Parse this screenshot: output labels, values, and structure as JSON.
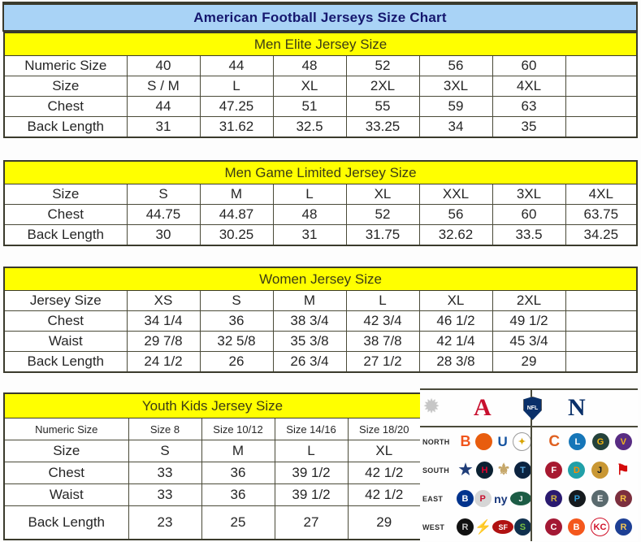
{
  "page": {
    "title": "American Football Jerseys Size Chart"
  },
  "colors": {
    "title_bg": "#a9d3f6",
    "title_fg": "#15176e",
    "section_bg": "#ffff00",
    "afc_red": "#c8102e",
    "nfc_blue": "#0a3069",
    "border": "#3a3a2c"
  },
  "chart_data": [
    {
      "type": "table",
      "title": "Men Elite Jersey Size",
      "rows": [
        {
          "label": "Numeric Size",
          "cells": [
            "40",
            "44",
            "48",
            "52",
            "56",
            "60",
            ""
          ]
        },
        {
          "label": "Size",
          "cells": [
            "S / M",
            "L",
            "XL",
            "2XL",
            "3XL",
            "4XL",
            ""
          ]
        },
        {
          "label": "Chest",
          "cells": [
            "44",
            "47.25",
            "51",
            "55",
            "59",
            "63",
            ""
          ]
        },
        {
          "label": "Back Length",
          "cells": [
            "31",
            "31.62",
            "32.5",
            "33.25",
            "34",
            "35",
            ""
          ]
        }
      ]
    },
    {
      "type": "table",
      "title": "Men Game Limited Jersey Size",
      "rows": [
        {
          "label": "Size",
          "cells": [
            "S",
            "M",
            "L",
            "XL",
            "XXL",
            "3XL",
            "4XL"
          ]
        },
        {
          "label": "Chest",
          "cells": [
            "44.75",
            "44.87",
            "48",
            "52",
            "56",
            "60",
            "63.75"
          ]
        },
        {
          "label": "Back Length",
          "cells": [
            "30",
            "30.25",
            "31",
            "31.75",
            "32.62",
            "33.5",
            "34.25"
          ]
        }
      ]
    },
    {
      "type": "table",
      "title": "Women Jersey Size",
      "rows": [
        {
          "label": "Jersey Size",
          "cells": [
            "XS",
            "S",
            "M",
            "L",
            "XL",
            "2XL",
            ""
          ]
        },
        {
          "label": "Chest",
          "cells": [
            "34 1/4",
            "36",
            "38 3/4",
            "42 3/4",
            "46 1/2",
            "49 1/2",
            ""
          ]
        },
        {
          "label": "Waist",
          "cells": [
            "29 7/8",
            "32 5/8",
            "35 3/8",
            "38 7/8",
            "42 1/4",
            "45 3/4",
            ""
          ]
        },
        {
          "label": "Back Length",
          "cells": [
            "24 1/2",
            "26",
            "26 3/4",
            "27 1/2",
            "28 3/8",
            "29",
            ""
          ]
        }
      ]
    },
    {
      "type": "table",
      "title": "Youth Kids Jersey Size",
      "rows": [
        {
          "label": "Numeric Size",
          "small": true,
          "cells": [
            "Size 8",
            "Size 10/12",
            "Size 14/16",
            "Size 18/20"
          ]
        },
        {
          "label": "Size",
          "cells": [
            "S",
            "M",
            "L",
            "XL"
          ]
        },
        {
          "label": "Chest",
          "cells": [
            "33",
            "36",
            "39 1/2",
            "42 1/2"
          ]
        },
        {
          "label": "Waist",
          "cells": [
            "33",
            "36",
            "39 1/2",
            "42 1/2"
          ]
        },
        {
          "label": "Back Length",
          "cells": [
            "23",
            "25",
            "27",
            "29"
          ]
        }
      ]
    }
  ],
  "conference_panel": {
    "header": {
      "starburst_glyph": "✹",
      "afc_letter": "A",
      "nfl_label": "NFL",
      "nfc_letter": "N"
    },
    "rows": [
      {
        "label": "NORTH",
        "afc": [
          {
            "name": "bengals",
            "type": "glyph",
            "glyph": "B",
            "fg": "#f0551c",
            "fs": 18
          },
          {
            "name": "browns",
            "type": "circle",
            "glyph": "",
            "fg": "#ffffff",
            "bg": "#e85d0e"
          },
          {
            "name": "colts",
            "type": "glyph",
            "glyph": "U",
            "fg": "#1553a0",
            "fs": 17
          },
          {
            "name": "steelers",
            "type": "circle",
            "glyph": "✦",
            "fg": "#d9a400",
            "bg": "#ffffff",
            "border": "#9a9a9a"
          }
        ],
        "nfc": [
          {
            "name": "bears",
            "type": "glyph",
            "glyph": "C",
            "fg": "#df6020",
            "fs": 19
          },
          {
            "name": "lions",
            "type": "circle",
            "glyph": "L",
            "fg": "#ffffff",
            "bg": "#1676b8"
          },
          {
            "name": "packers",
            "type": "circle",
            "glyph": "G",
            "fg": "#f2b40d",
            "bg": "#24423c"
          },
          {
            "name": "vikings",
            "type": "circle",
            "glyph": "V",
            "fg": "#efb21f",
            "bg": "#582c83"
          }
        ]
      },
      {
        "label": "SOUTH",
        "afc": [
          {
            "name": "cowboys",
            "type": "glyph",
            "glyph": "★",
            "fg": "#1e3c78",
            "fs": 19
          },
          {
            "name": "texans",
            "type": "circle",
            "glyph": "H",
            "fg": "#e4002b",
            "bg": "#0b2132"
          },
          {
            "name": "saints",
            "type": "glyph",
            "glyph": "⚜",
            "fg": "#c5a668",
            "fs": 19
          },
          {
            "name": "titans",
            "type": "circle",
            "glyph": "T",
            "fg": "#5ba7dc",
            "bg": "#0c2340"
          }
        ],
        "nfc": [
          {
            "name": "falcons",
            "type": "circle",
            "glyph": "F",
            "fg": "#ffffff",
            "bg": "#a71930"
          },
          {
            "name": "dolphins",
            "type": "circle",
            "glyph": "D",
            "fg": "#ff8a00",
            "bg": "#21a0a8"
          },
          {
            "name": "jaguars",
            "type": "circle",
            "glyph": "J",
            "fg": "#101820",
            "bg": "#c99733"
          },
          {
            "name": "buccaneers",
            "type": "glyph",
            "glyph": "⚑",
            "fg": "#d40a0a",
            "fs": 18
          }
        ]
      },
      {
        "label": "EAST",
        "afc": [
          {
            "name": "bills",
            "type": "circle",
            "glyph": "B",
            "fg": "#ffffff",
            "bg": "#00338d"
          },
          {
            "name": "patriots",
            "type": "circle",
            "glyph": "P",
            "fg": "#c8102e",
            "bg": "#d6d6d6"
          },
          {
            "name": "giants",
            "type": "glyph",
            "glyph": "ny",
            "fg": "#15357a",
            "fs": 14
          },
          {
            "name": "jets",
            "type": "ellipse",
            "glyph": "J",
            "fg": "#ffffff",
            "bg": "#1c5c45"
          }
        ],
        "nfc": [
          {
            "name": "ravens",
            "type": "circle",
            "glyph": "R",
            "fg": "#d0b240",
            "bg": "#2a1a70"
          },
          {
            "name": "panthers",
            "type": "circle",
            "glyph": "P",
            "fg": "#2f9bd6",
            "bg": "#151a1e"
          },
          {
            "name": "eagles",
            "type": "circle",
            "glyph": "E",
            "fg": "#ffffff",
            "bg": "#5a6a6e"
          },
          {
            "name": "redskins",
            "type": "circle",
            "glyph": "R",
            "fg": "#f5c143",
            "bg": "#7c2f3e"
          }
        ]
      },
      {
        "label": "WEST",
        "afc": [
          {
            "name": "raiders",
            "type": "circle",
            "glyph": "R",
            "fg": "#c8c8c8",
            "bg": "#111111"
          },
          {
            "name": "chargers",
            "type": "glyph",
            "glyph": "⚡",
            "fg": "#f7b500",
            "fs": 17
          },
          {
            "name": "fortyniners",
            "type": "ellipse",
            "glyph": "SF",
            "fg": "#ffffff",
            "bg": "#b01111"
          },
          {
            "name": "seahawks",
            "type": "circle",
            "glyph": "S",
            "fg": "#78c143",
            "bg": "#10304e"
          }
        ],
        "nfc": [
          {
            "name": "cardinals",
            "type": "circle",
            "glyph": "C",
            "fg": "#ffffff",
            "bg": "#a31834"
          },
          {
            "name": "broncos",
            "type": "circle",
            "glyph": "B",
            "fg": "#ffffff",
            "bg": "#f4571c"
          },
          {
            "name": "chiefs",
            "type": "circle",
            "glyph": "KC",
            "fg": "#d01028",
            "bg": "#ffffff",
            "border": "#d01028"
          },
          {
            "name": "rams",
            "type": "circle",
            "glyph": "R",
            "fg": "#f2c553",
            "bg": "#1d3f94"
          }
        ]
      }
    ]
  }
}
